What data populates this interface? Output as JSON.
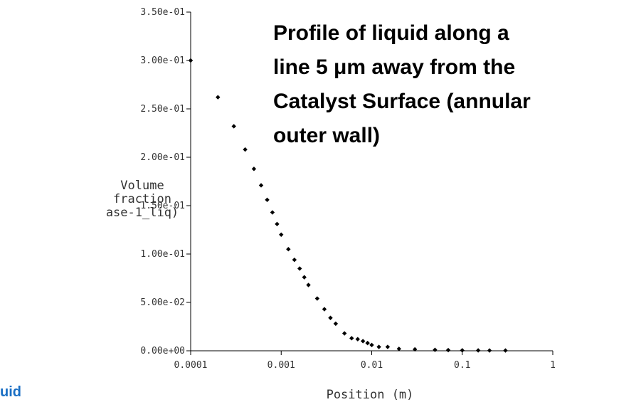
{
  "chart_data": {
    "type": "scatter",
    "annotation": [
      "Profile of liquid along a",
      "line  5 μm away from the",
      "Catalyst Surface (annular",
      "outer wall)"
    ],
    "x_label": "Position (m)",
    "y_label": [
      "Volume",
      "fraction",
      "ase-1_liq)"
    ],
    "footer_text": "uid",
    "x_log": true,
    "color": "#000000",
    "xlim": [
      0.0001,
      1
    ],
    "xticks": [
      0.0001,
      0.001,
      0.01,
      0.1,
      1
    ],
    "ylim": [
      0,
      0.35
    ],
    "yticks": [
      {
        "value": 0,
        "label": "0.00e+00"
      },
      {
        "value": 0.05,
        "label": "5.00e-02"
      },
      {
        "value": 0.1,
        "label": "1.00e-01"
      },
      {
        "value": 0.15,
        "label": "1.50e-01"
      },
      {
        "value": 0.2,
        "label": "2.00e-01"
      },
      {
        "value": 0.25,
        "label": "2.50e-01"
      },
      {
        "value": 0.3,
        "label": "3.00e-01"
      },
      {
        "value": 0.35,
        "label": "3.50e-01"
      }
    ],
    "x": [
      0.0001,
      0.0002,
      0.0003,
      0.0004,
      0.0005,
      0.0006,
      0.0007,
      0.0008,
      0.0009,
      0.001,
      0.0012,
      0.0014,
      0.0016,
      0.0018,
      0.002,
      0.0025,
      0.003,
      0.0035,
      0.004,
      0.005,
      0.006,
      0.007,
      0.008,
      0.009,
      0.01,
      0.012,
      0.015,
      0.02,
      0.03,
      0.05,
      0.07,
      0.1,
      0.15,
      0.2,
      0.3
    ],
    "values": [
      0.3,
      0.262,
      0.232,
      0.208,
      0.188,
      0.171,
      0.156,
      0.143,
      0.131,
      0.12,
      0.105,
      0.094,
      0.085,
      0.076,
      0.068,
      0.054,
      0.043,
      0.034,
      0.028,
      0.018,
      0.013,
      0.012,
      0.01,
      0.008,
      0.006,
      0.004,
      0.004,
      0.002,
      0.0015,
      0.001,
      0.0007,
      0.0005,
      0.0004,
      0.0003,
      0.0003
    ]
  }
}
